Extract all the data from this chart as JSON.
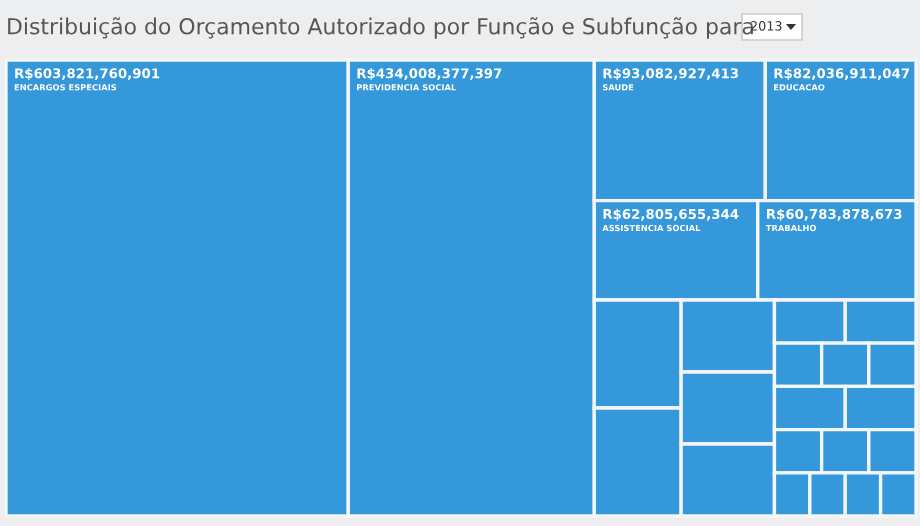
{
  "chart_data": {
    "type": "other",
    "title": "Distribuição do Orçamento Autorizado por Função e Subfunção para",
    "annotations": [
      "2013"
    ],
    "categories": [
      "ENCARGOS ESPECIAIS",
      "PREVIDENCIA SOCIAL",
      "SAUDE",
      "EDUCACAO",
      "ASSISTENCIA SOCIAL",
      "TRABALHO",
      null,
      null,
      null,
      null,
      null,
      null,
      null,
      null,
      null,
      null,
      null,
      null,
      null,
      null,
      null,
      null,
      null,
      null,
      null
    ],
    "values": [
      603821760901,
      434008377397,
      93082927413,
      82036911047,
      62805655344,
      60783878673,
      null,
      null,
      null,
      null,
      null,
      null,
      null,
      null,
      null,
      null,
      null,
      null,
      null,
      null,
      null,
      null,
      null,
      null,
      null
    ],
    "value_labels": [
      "R$603,821,760,901",
      "R$434,008,377,397",
      "R$93,082,927,413",
      "R$82,036,911,047",
      "R$62,805,655,344",
      "R$60,783,878,673",
      null,
      null,
      null,
      null,
      null,
      null,
      null,
      null,
      null,
      null,
      null,
      null,
      null,
      null,
      null,
      null,
      null,
      null,
      null
    ],
    "color": "#3598db"
  }
}
